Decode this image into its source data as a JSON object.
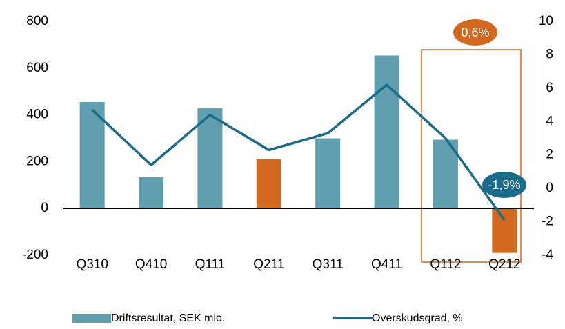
{
  "chart_data": {
    "type": "bar_line",
    "categories": [
      "Q310",
      "Q410",
      "Q111",
      "Q211",
      "Q311",
      "Q411",
      "Q112",
      "Q212"
    ],
    "series": [
      {
        "name": "Driftsresultat, SEK mio.",
        "type": "bar",
        "color": "#5f9faf",
        "colors": [
          "#5f9faf",
          "#5f9faf",
          "#5f9faf",
          "#d2691e",
          "#5f9faf",
          "#5f9faf",
          "#5f9faf",
          "#d2691e"
        ],
        "values": [
          455,
          134,
          428,
          211,
          300,
          654,
          294,
          -190
        ]
      },
      {
        "name": "Overskudsgrad, %",
        "type": "line",
        "axis": "y2",
        "color": "#1a6a8a",
        "values": [
          4.7,
          1.4,
          4.4,
          2.3,
          3.3,
          6.2,
          3.0,
          -1.9
        ]
      }
    ],
    "ylim": [
      -200,
      800
    ],
    "yticks": [
      -200,
      0,
      200,
      400,
      600,
      800
    ],
    "y2lim": [
      -4,
      10
    ],
    "y2ticks": [
      -4,
      -2,
      0,
      2,
      4,
      6,
      8,
      10
    ],
    "annotations": [
      {
        "text": "0,6%",
        "color": "#d2691e"
      },
      {
        "text": "-1,9%",
        "color": "#1a6a8a"
      }
    ],
    "legend": "bottom"
  }
}
